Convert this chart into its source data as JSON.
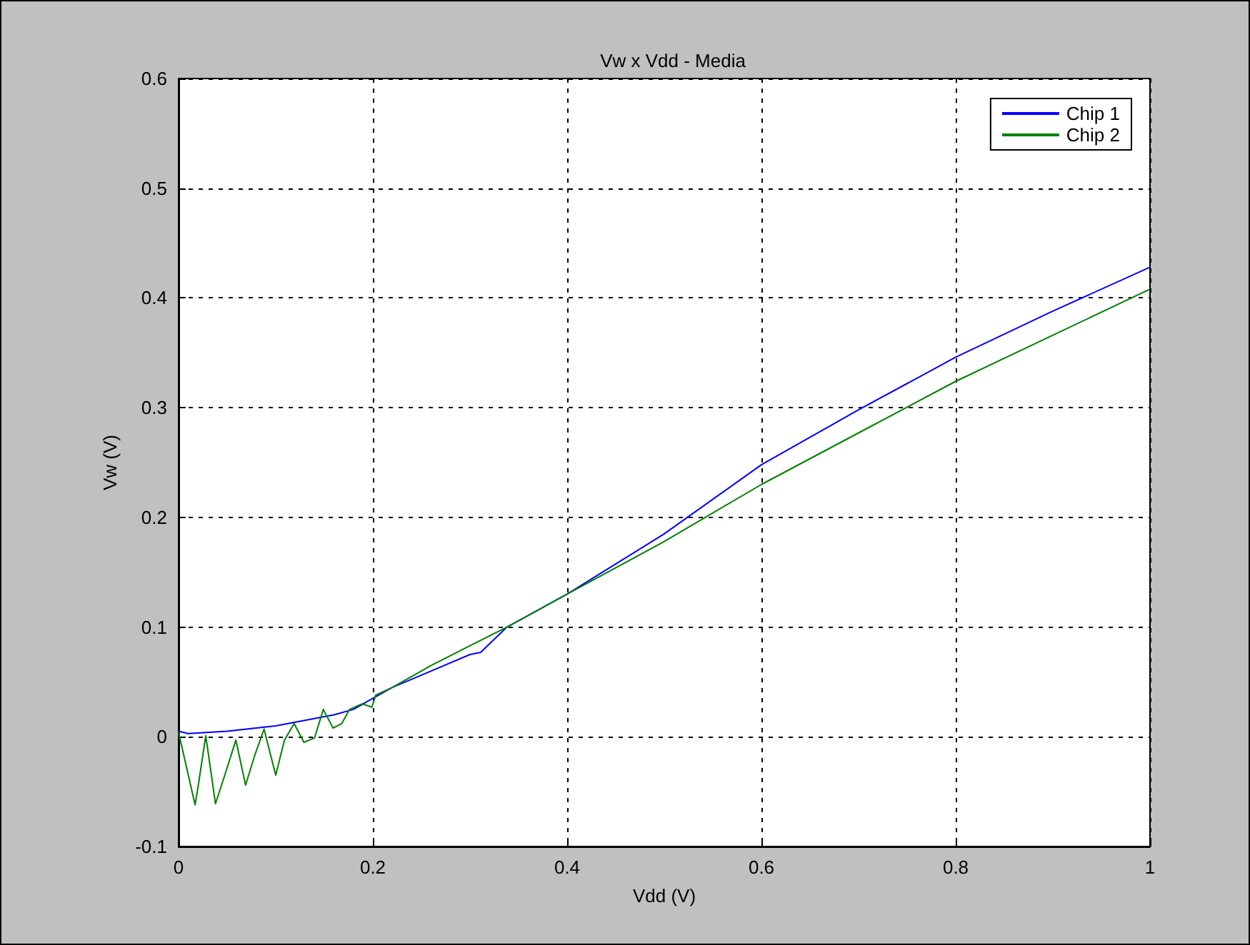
{
  "chart_data": {
    "type": "line",
    "title": "Vw x Vdd - Media",
    "xlabel": "Vdd (V)",
    "ylabel": "Vw (V)",
    "xlim": [
      0,
      1
    ],
    "xticks": [
      0,
      0.2,
      0.4,
      0.6,
      0.8,
      1
    ],
    "ylim": [
      -0.1,
      0.6
    ],
    "yticks": [
      -0.1,
      0,
      0.1,
      0.2,
      0.3,
      0.4,
      0.5,
      0.6
    ],
    "grid": true,
    "legend": "top right",
    "marker": "none",
    "line_style": "solid",
    "series": [
      {
        "name": "Chip 1",
        "color": "#0000ff",
        "x": [
          0,
          0.01,
          0.05,
          0.1,
          0.13,
          0.16,
          0.18,
          0.2,
          0.22,
          0.26,
          0.3,
          0.311,
          0.338,
          0.4,
          0.5,
          0.6,
          0.7,
          0.8,
          0.9,
          1
        ],
        "values": [
          0.005,
          0.003,
          0.005,
          0.01,
          0.015,
          0.02,
          0.025,
          0.035,
          0.045,
          0.06,
          0.075,
          0.077,
          0.1,
          0.13,
          0.185,
          0.248,
          0.298,
          0.346,
          0.388,
          0.428
        ]
      },
      {
        "name": "Chip 2",
        "color": "#008000",
        "x": [
          0,
          0.017,
          0.02,
          0.028,
          0.038,
          0.049,
          0.059,
          0.069,
          0.078,
          0.088,
          0.1,
          0.109,
          0.119,
          0.129,
          0.14,
          0.149,
          0.159,
          0.168,
          0.176,
          0.189,
          0.199,
          0.203,
          0.22,
          0.26,
          0.3,
          0.311,
          0.338,
          0.4,
          0.5,
          0.6,
          0.7,
          0.8,
          0.9,
          1
        ],
        "values": [
          0.004,
          -0.062,
          -0.046,
          0.001,
          -0.061,
          -0.031,
          -0.003,
          -0.044,
          -0.018,
          0.007,
          -0.035,
          -0.003,
          0.012,
          -0.005,
          -0.001,
          0.025,
          0.008,
          0.012,
          0.025,
          0.03,
          0.027,
          0.038,
          0.045,
          0.065,
          0.083,
          0.088,
          0.1,
          0.13,
          0.178,
          0.23,
          0.277,
          0.324,
          0.366,
          0.408
        ]
      }
    ]
  }
}
